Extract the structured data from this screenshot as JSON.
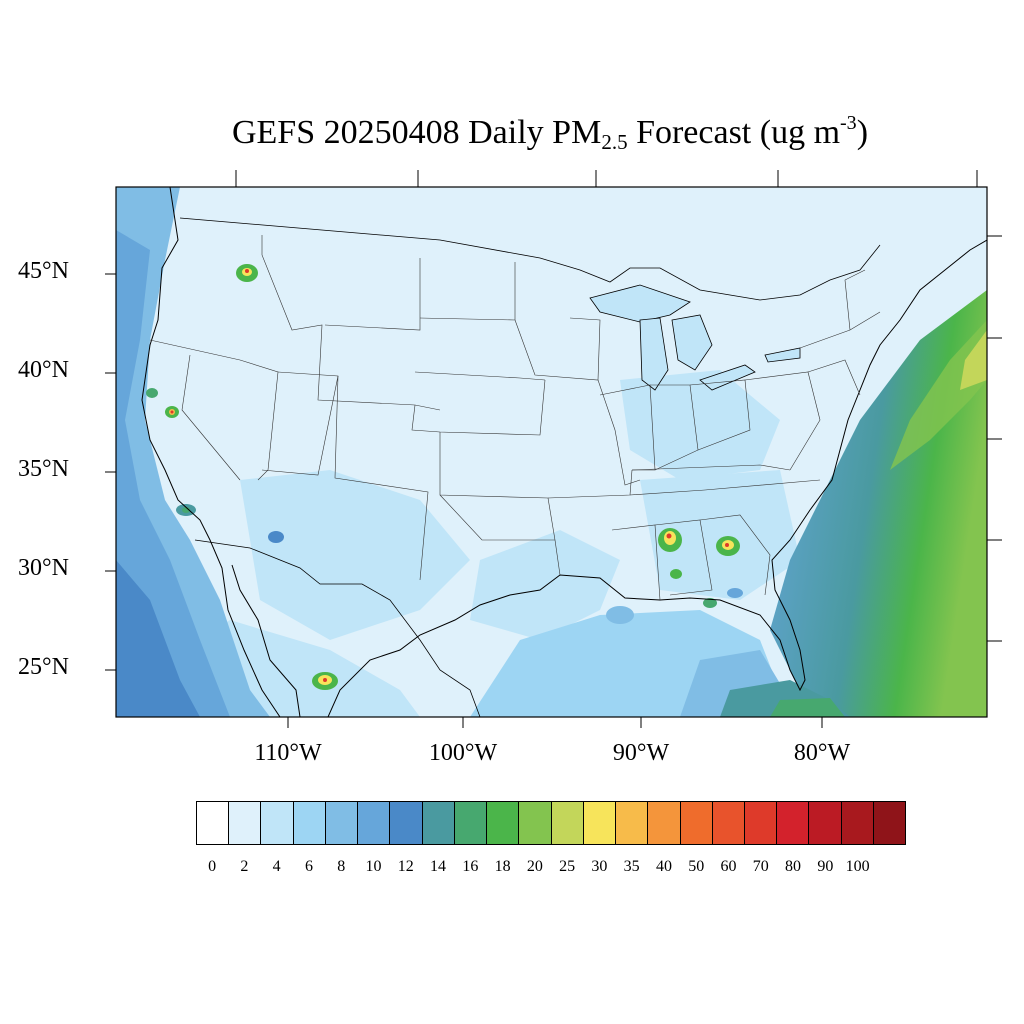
{
  "title": {
    "prefix": "GEFS 20250408 Daily PM",
    "subscript": "2.5",
    "middle": " Forecast (ug m",
    "superscript": "-3",
    "suffix": ")"
  },
  "axes": {
    "lat_labels": [
      "45°N",
      "40°N",
      "35°N",
      "30°N",
      "25°N"
    ],
    "lon_labels": [
      "110°W",
      "100°W",
      "90°W",
      "80°W"
    ]
  },
  "colorbar": {
    "ticks": [
      "0",
      "2",
      "4",
      "6",
      "8",
      "10",
      "12",
      "14",
      "16",
      "18",
      "20",
      "25",
      "30",
      "35",
      "40",
      "50",
      "60",
      "70",
      "80",
      "90",
      "100"
    ],
    "colors": [
      "#ffffff",
      "#dff1fb",
      "#c0e5f8",
      "#9dd5f3",
      "#80bde5",
      "#66a6da",
      "#4a89c8",
      "#4a9aa0",
      "#47a86f",
      "#4bb54a",
      "#83c44f",
      "#c3d65a",
      "#f7e45b",
      "#f7bb4a",
      "#f4953b",
      "#ef6c2c",
      "#e8532c",
      "#de3a2a",
      "#d3222c",
      "#bb1b24",
      "#a8191e",
      "#8f1419"
    ]
  },
  "map": {
    "fill_colors": {
      "base": "#dff1fb",
      "light": "#c0e5f8",
      "mid": "#9dd5f3",
      "ocean_near": "#80bde5",
      "ocean_far": "#66a6da",
      "deep": "#4a89c8",
      "teal": "#4a9aa0",
      "green": "#47a86f",
      "bright_green": "#4bb54a",
      "lime": "#83c44f",
      "yellow": "#f7e45b",
      "red": "#de3a2a"
    }
  }
}
